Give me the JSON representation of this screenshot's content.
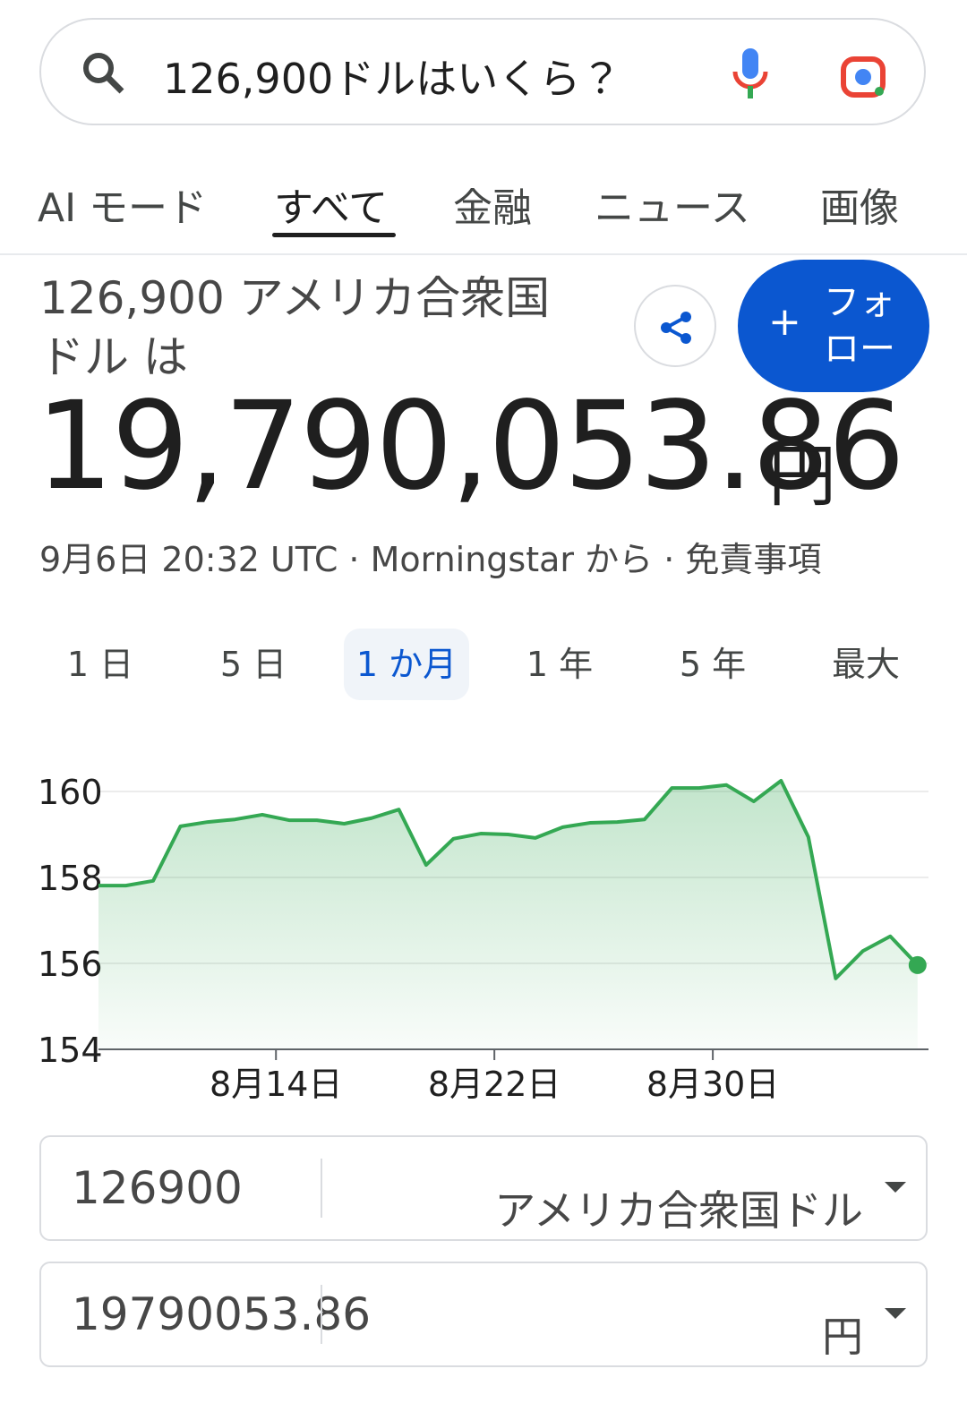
{
  "search": {
    "query": "126,900ドルはいくら？"
  },
  "tabs": {
    "items": [
      "AI モード",
      "すべて",
      "金融",
      "ニュース",
      "画像"
    ],
    "selected": 1
  },
  "header": {
    "subject": "126,900 アメリカ合衆国 ドル は",
    "follow": "フォロー",
    "follow_icon": "+"
  },
  "result": {
    "value": "19,790,053.86",
    "unit": "円"
  },
  "source": "9月6日 20:32 UTC · Morningstar から · 免責事項",
  "ranges": {
    "items": [
      "1 日",
      "5 日",
      "1 か月",
      "1 年",
      "5 年",
      "最大"
    ],
    "selected": 2
  },
  "chart_data": {
    "type": "line",
    "color": "#34a853",
    "x": [
      7.5,
      8.5,
      9.5,
      10.5,
      11.5,
      12.5,
      13.5,
      14.5,
      15.5,
      16.5,
      17.5,
      18.5,
      19.5,
      20.5,
      21.5,
      22.5,
      23.5,
      24.5,
      25.5,
      26.5,
      27.5,
      28.5,
      29.5,
      30.5,
      31.5,
      32.5,
      33.5,
      34.5,
      35.5,
      36.5,
      37.5
    ],
    "values": [
      157.81,
      157.81,
      157.92,
      159.19,
      159.29,
      159.35,
      159.46,
      159.33,
      159.33,
      159.25,
      159.38,
      159.58,
      158.29,
      158.9,
      159.02,
      159.0,
      158.92,
      159.17,
      159.27,
      159.29,
      159.35,
      160.08,
      160.08,
      160.15,
      159.77,
      160.25,
      158.94,
      155.65,
      156.29,
      156.63,
      155.96
    ],
    "xlim": [
      7.5,
      37.9
    ],
    "xticks": [
      {
        "value": 14,
        "label": "8月14日"
      },
      {
        "value": 22,
        "label": "8月22日"
      },
      {
        "value": 30,
        "label": "8月30日"
      }
    ],
    "ylim": [
      154,
      160.5
    ],
    "yticks": [
      154,
      156,
      158,
      160
    ],
    "grid": true
  },
  "converter": {
    "from_amount": "126900",
    "from_currency": "アメリカ合衆国ドル",
    "to_amount": "19790053.86",
    "to_currency": "円"
  }
}
